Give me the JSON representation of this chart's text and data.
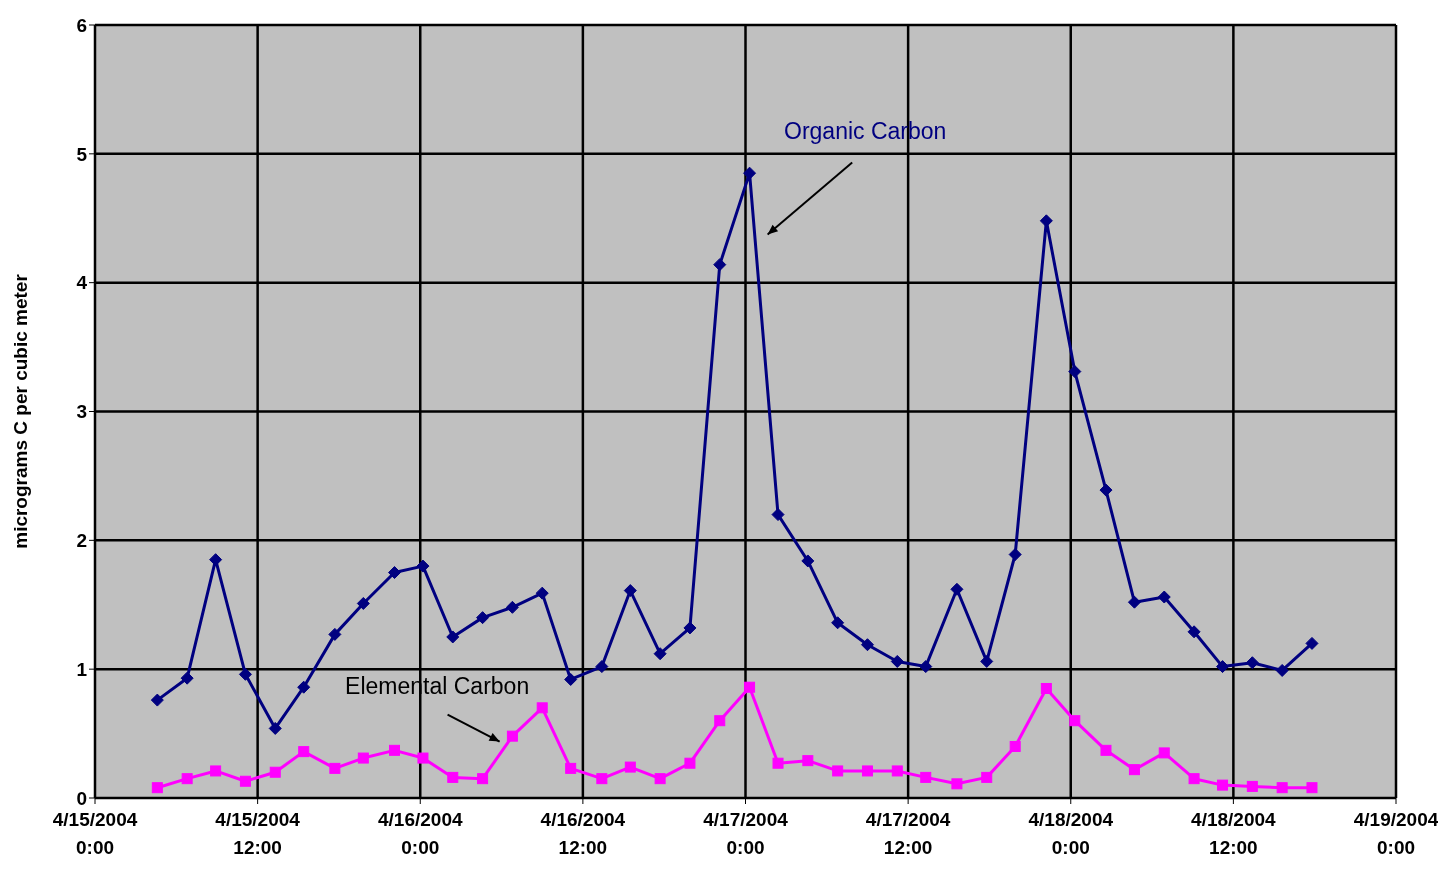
{
  "chart_data": {
    "type": "line",
    "ylabel": "micrograms C per cubic meter",
    "xlim": [
      "2004-04-15T00:00",
      "2004-04-19T00:00"
    ],
    "xticks": [
      {
        "value": "2004-04-15T00:00",
        "label": "4/15/2004 0:00"
      },
      {
        "value": "2004-04-15T12:00",
        "label": "4/15/2004 12:00"
      },
      {
        "value": "2004-04-16T00:00",
        "label": "4/16/2004 0:00"
      },
      {
        "value": "2004-04-16T12:00",
        "label": "4/16/2004 12:00"
      },
      {
        "value": "2004-04-17T00:00",
        "label": "4/17/2004 0:00"
      },
      {
        "value": "2004-04-17T12:00",
        "label": "4/17/2004 12:00"
      },
      {
        "value": "2004-04-18T00:00",
        "label": "4/18/2004 0:00"
      },
      {
        "value": "2004-04-18T12:00",
        "label": "4/18/2004 12:00"
      },
      {
        "value": "2004-04-19T00:00",
        "label": "4/19/2004 0:00"
      }
    ],
    "ylim": [
      0,
      6
    ],
    "yticks": [
      0,
      1,
      2,
      3,
      4,
      5,
      6
    ],
    "grid": true,
    "legend": false,
    "x": [
      "2004-04-15T04:36",
      "2004-04-15T06:48",
      "2004-04-15T08:54",
      "2004-04-15T11:06",
      "2004-04-15T13:18",
      "2004-04-15T15:24",
      "2004-04-15T17:42",
      "2004-04-15T19:48",
      "2004-04-15T22:06",
      "2004-04-16T00:12",
      "2004-04-16T02:24",
      "2004-04-16T04:36",
      "2004-04-16T06:48",
      "2004-04-16T09:00",
      "2004-04-16T11:06",
      "2004-04-16T13:24",
      "2004-04-16T15:30",
      "2004-04-16T17:42",
      "2004-04-16T19:54",
      "2004-04-16T22:06",
      "2004-04-17T00:18",
      "2004-04-17T02:24",
      "2004-04-17T04:36",
      "2004-04-17T06:48",
      "2004-04-17T09:00",
      "2004-04-17T11:12",
      "2004-04-17T13:18",
      "2004-04-17T15:36",
      "2004-04-17T17:48",
      "2004-04-17T19:54",
      "2004-04-17T22:12",
      "2004-04-18T00:18",
      "2004-04-18T02:36",
      "2004-04-18T04:42",
      "2004-04-18T06:54",
      "2004-04-18T09:06",
      "2004-04-18T11:12",
      "2004-04-18T13:24",
      "2004-04-18T15:36",
      "2004-04-18T17:48"
    ],
    "series": [
      {
        "color": "#000080",
        "marker": "diamond",
        "values": [
          0.76,
          0.93,
          1.85,
          0.96,
          0.54,
          0.86,
          1.27,
          1.51,
          1.75,
          1.8,
          1.25,
          1.4,
          1.48,
          1.59,
          0.92,
          1.02,
          1.61,
          1.12,
          1.32,
          4.14,
          4.85,
          2.2,
          1.84,
          1.36,
          1.19,
          1.06,
          1.02,
          1.62,
          1.06,
          1.89,
          4.48,
          3.31,
          2.39,
          1.52,
          1.56,
          1.29,
          1.02,
          1.05,
          0.99,
          1.2
        ]
      },
      {
        "color": "#ff00ff",
        "marker": "square",
        "values": [
          0.08,
          0.15,
          0.21,
          0.13,
          0.2,
          0.36,
          0.23,
          0.31,
          0.37,
          0.31,
          0.16,
          0.15,
          0.48,
          0.7,
          0.23,
          0.15,
          0.24,
          0.15,
          0.27,
          0.6,
          0.86,
          0.27,
          0.29,
          0.21,
          0.21,
          0.21,
          0.16,
          0.11,
          0.16,
          0.4,
          0.85,
          0.6,
          0.37,
          0.22,
          0.35,
          0.15,
          0.1,
          0.09,
          0.08,
          0.08
        ]
      }
    ],
    "annotations": [
      "Organic Carbon",
      "Elemental Carbon"
    ]
  }
}
